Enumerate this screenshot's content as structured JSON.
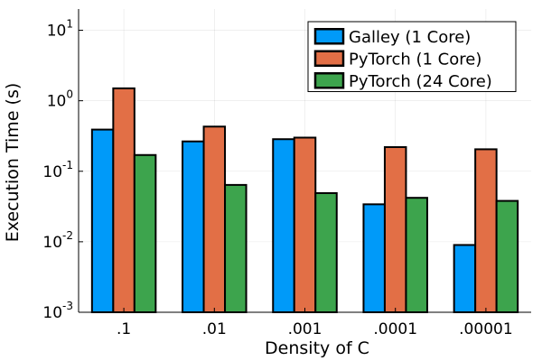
{
  "chart_data": {
    "type": "bar",
    "title": "",
    "xlabel": "Density of C",
    "ylabel": "Execution Time (s)",
    "yscale": "log",
    "ylim": [
      0.001,
      20
    ],
    "ytick_values": [
      0.001,
      0.01,
      0.1,
      1,
      10
    ],
    "ytick_exponents": [
      "-3",
      "-2",
      "-1",
      "0",
      "1"
    ],
    "ytick_base": "10",
    "categories": [
      ".1",
      ".01",
      ".001",
      ".0001",
      ".00001"
    ],
    "grid": true,
    "legend_position": "top-right",
    "series": [
      {
        "name": "Galley (1 Core)",
        "color": "#009af9",
        "values": [
          0.39,
          0.265,
          0.285,
          0.034,
          0.009
        ]
      },
      {
        "name": "PyTorch (1 Core)",
        "color": "#e26f46",
        "values": [
          1.5,
          0.43,
          0.3,
          0.22,
          0.205
        ]
      },
      {
        "name": "PyTorch (24 Core)",
        "color": "#3da44d",
        "values": [
          0.17,
          0.064,
          0.049,
          0.042,
          0.038
        ]
      }
    ]
  }
}
